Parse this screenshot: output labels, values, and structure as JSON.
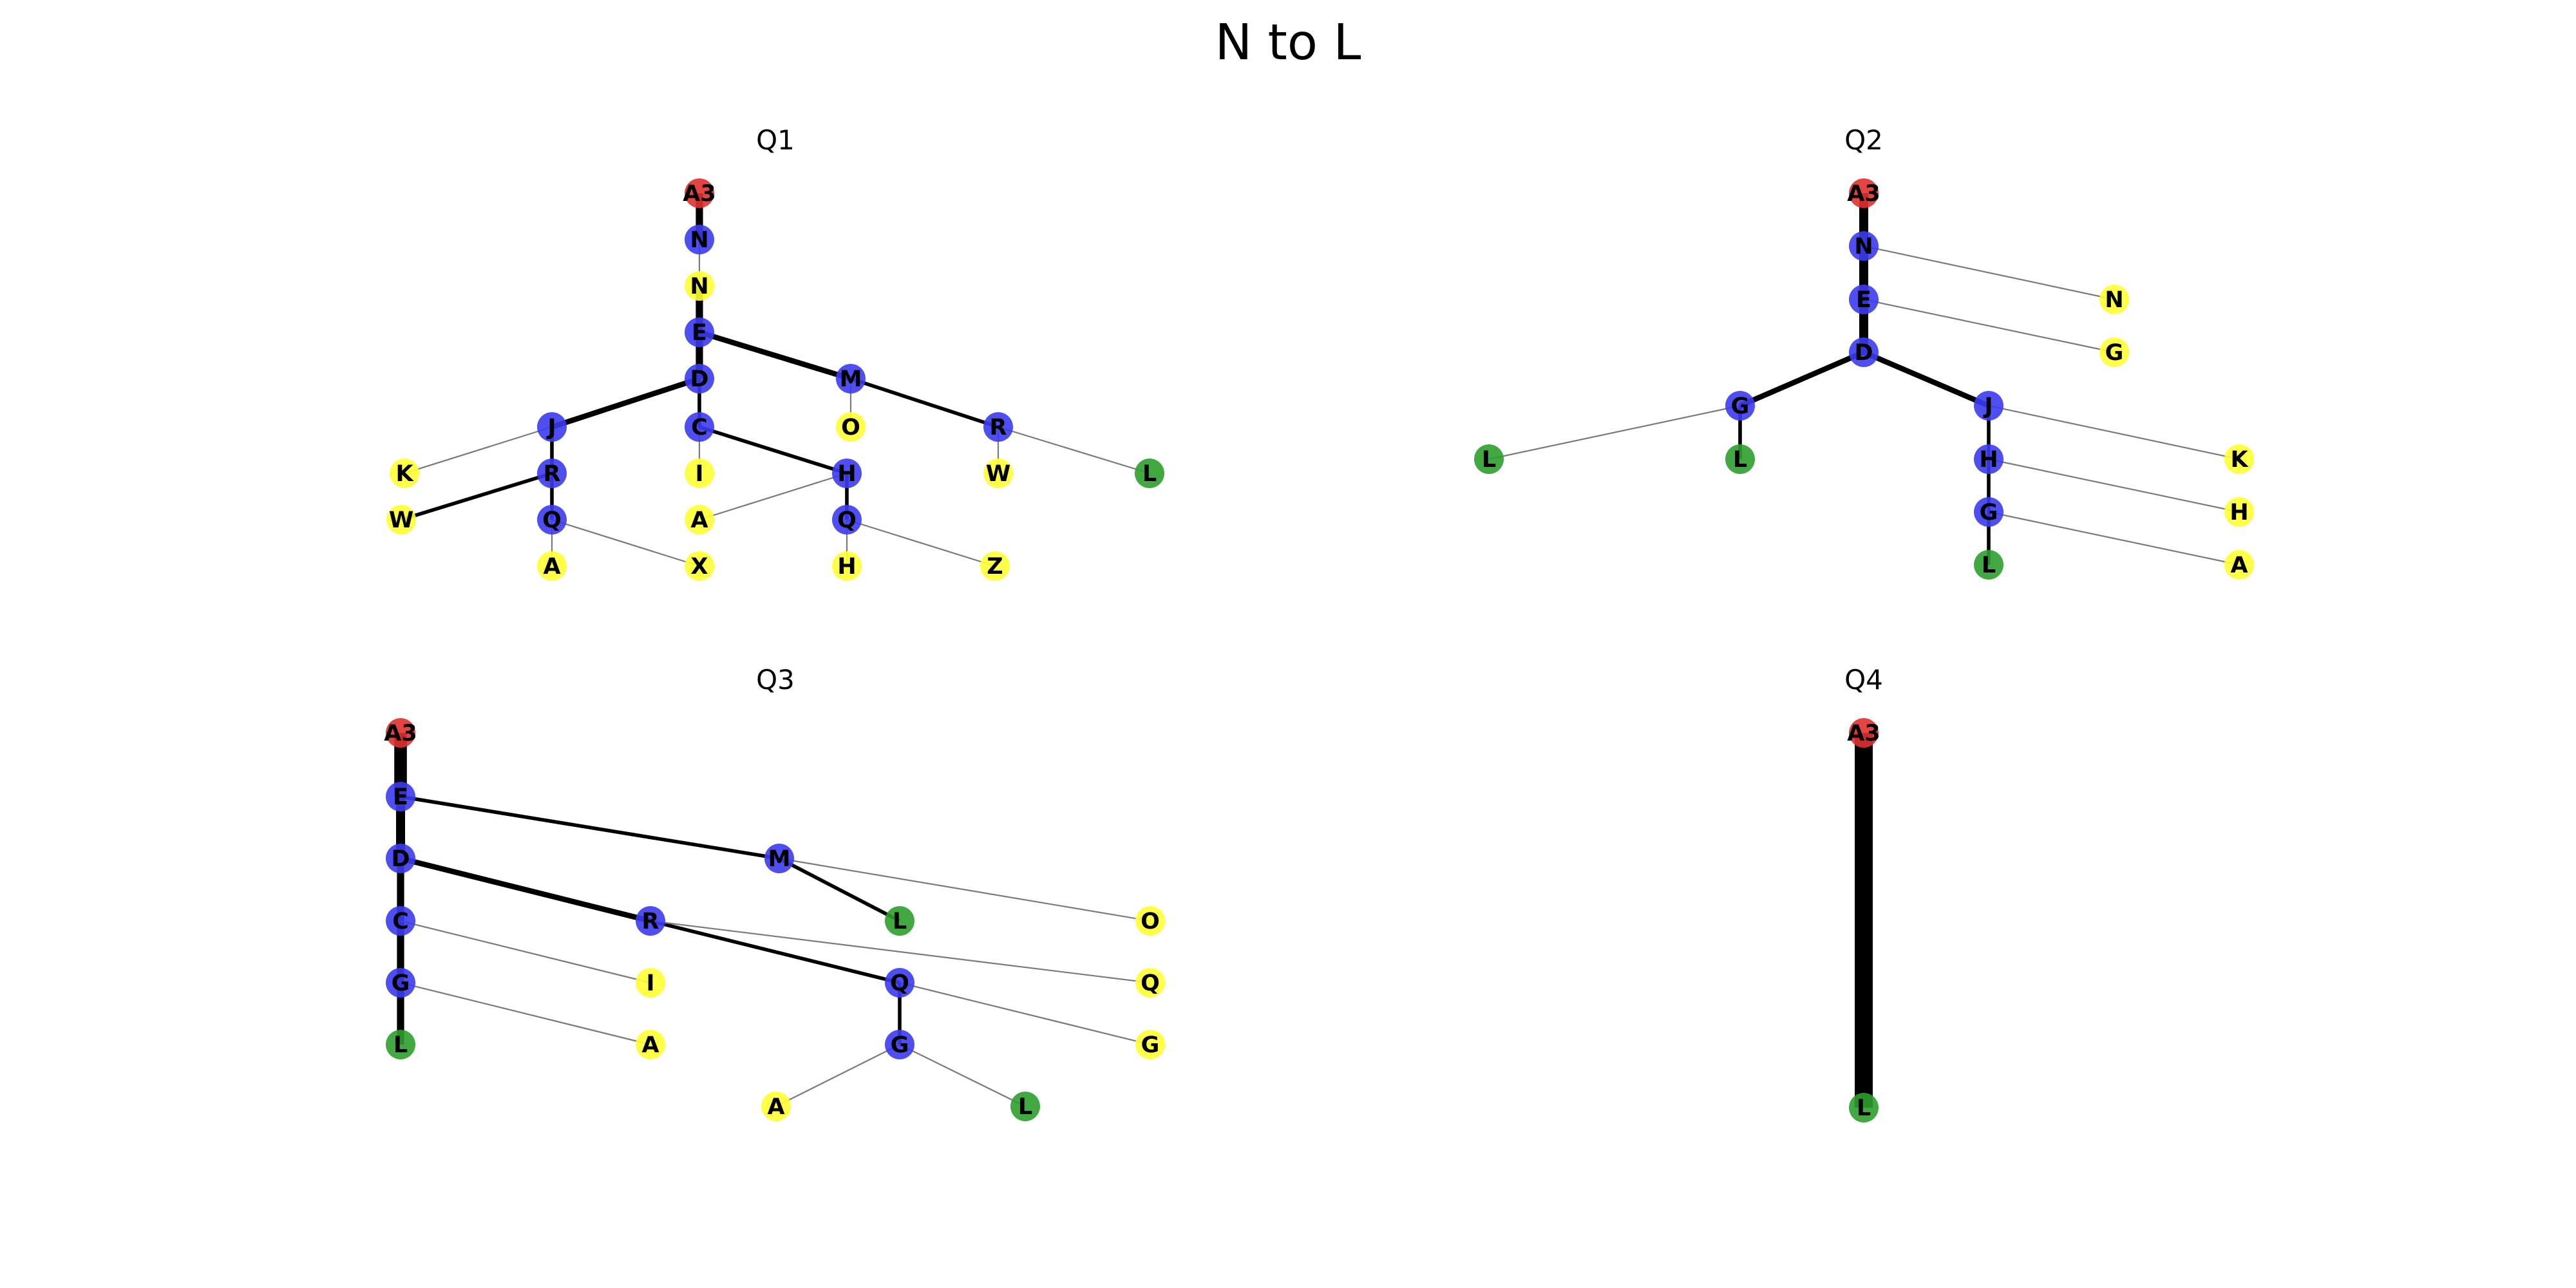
{
  "title": "N to L",
  "colors": {
    "root": "#e03030",
    "path": "#3c3cf0",
    "leaf": "#ffff33",
    "target": "#2e9e2e"
  },
  "panels": [
    {
      "title": "Q1",
      "nodes": [
        {
          "id": "A3",
          "label": "A3",
          "kind": "root"
        },
        {
          "id": "N1",
          "label": "N",
          "kind": "path"
        },
        {
          "id": "N2",
          "label": "N",
          "kind": "leaf"
        },
        {
          "id": "E",
          "label": "E",
          "kind": "path"
        },
        {
          "id": "D",
          "label": "D",
          "kind": "path"
        },
        {
          "id": "M",
          "label": "M",
          "kind": "path"
        },
        {
          "id": "J",
          "label": "J",
          "kind": "path"
        },
        {
          "id": "C",
          "label": "C",
          "kind": "path"
        },
        {
          "id": "O",
          "label": "O",
          "kind": "leaf"
        },
        {
          "id": "R2",
          "label": "R",
          "kind": "path"
        },
        {
          "id": "K",
          "label": "K",
          "kind": "leaf"
        },
        {
          "id": "R1",
          "label": "R",
          "kind": "path"
        },
        {
          "id": "I",
          "label": "I",
          "kind": "leaf"
        },
        {
          "id": "H1",
          "label": "H",
          "kind": "path"
        },
        {
          "id": "W2",
          "label": "W",
          "kind": "leaf"
        },
        {
          "id": "L",
          "label": "L",
          "kind": "target"
        },
        {
          "id": "W1",
          "label": "W",
          "kind": "leaf"
        },
        {
          "id": "Q1",
          "label": "Q",
          "kind": "path"
        },
        {
          "id": "A1",
          "label": "A",
          "kind": "leaf"
        },
        {
          "id": "Q2",
          "label": "Q",
          "kind": "path"
        },
        {
          "id": "A2",
          "label": "A",
          "kind": "leaf"
        },
        {
          "id": "X",
          "label": "X",
          "kind": "leaf"
        },
        {
          "id": "H2",
          "label": "H",
          "kind": "leaf"
        },
        {
          "id": "Z",
          "label": "Z",
          "kind": "leaf"
        }
      ],
      "edges": [
        {
          "from": "A3",
          "to": "N1",
          "w": 4
        },
        {
          "from": "N1",
          "to": "N2",
          "w": 1
        },
        {
          "from": "N2",
          "to": "E",
          "w": 4
        },
        {
          "from": "E",
          "to": "D",
          "w": 4
        },
        {
          "from": "E",
          "to": "M",
          "w": 3
        },
        {
          "from": "D",
          "to": "J",
          "w": 3
        },
        {
          "from": "D",
          "to": "C",
          "w": 2
        },
        {
          "from": "M",
          "to": "O",
          "w": 1
        },
        {
          "from": "M",
          "to": "R2",
          "w": 2
        },
        {
          "from": "R2",
          "to": "W2",
          "w": 1
        },
        {
          "from": "R2",
          "to": "L",
          "w": 1
        },
        {
          "from": "J",
          "to": "K",
          "w": 1
        },
        {
          "from": "J",
          "to": "R1",
          "w": 2
        },
        {
          "from": "R1",
          "to": "W1",
          "w": 2
        },
        {
          "from": "R1",
          "to": "Q1",
          "w": 2
        },
        {
          "from": "Q1",
          "to": "A1",
          "w": 1
        },
        {
          "from": "Q1",
          "to": "X",
          "w": 1
        },
        {
          "from": "C",
          "to": "I",
          "w": 1
        },
        {
          "from": "C",
          "to": "H1",
          "w": 2
        },
        {
          "from": "H1",
          "to": "A2",
          "w": 1
        },
        {
          "from": "H1",
          "to": "Q2",
          "w": 2
        },
        {
          "from": "Q2",
          "to": "H2",
          "w": 1
        },
        {
          "from": "Q2",
          "to": "Z",
          "w": 1
        }
      ]
    },
    {
      "title": "Q2",
      "nodes": [
        {
          "id": "A3",
          "label": "A3",
          "kind": "root"
        },
        {
          "id": "N1",
          "label": "N",
          "kind": "path"
        },
        {
          "id": "E",
          "label": "E",
          "kind": "path"
        },
        {
          "id": "N2",
          "label": "N",
          "kind": "leaf"
        },
        {
          "id": "G2",
          "label": "G",
          "kind": "leaf"
        },
        {
          "id": "D",
          "label": "D",
          "kind": "path"
        },
        {
          "id": "G1",
          "label": "G",
          "kind": "path"
        },
        {
          "id": "J",
          "label": "J",
          "kind": "path"
        },
        {
          "id": "L1",
          "label": "L",
          "kind": "target"
        },
        {
          "id": "L2",
          "label": "L",
          "kind": "target"
        },
        {
          "id": "H1",
          "label": "H",
          "kind": "path"
        },
        {
          "id": "K",
          "label": "K",
          "kind": "leaf"
        },
        {
          "id": "G3",
          "label": "G",
          "kind": "path"
        },
        {
          "id": "H2",
          "label": "H",
          "kind": "leaf"
        },
        {
          "id": "L3",
          "label": "L",
          "kind": "target"
        },
        {
          "id": "A",
          "label": "A",
          "kind": "leaf"
        }
      ],
      "edges": [
        {
          "from": "A3",
          "to": "N1",
          "w": 5
        },
        {
          "from": "N1",
          "to": "E",
          "w": 5
        },
        {
          "from": "N1",
          "to": "N2",
          "w": 1
        },
        {
          "from": "E",
          "to": "D",
          "w": 5
        },
        {
          "from": "E",
          "to": "G2",
          "w": 1
        },
        {
          "from": "D",
          "to": "G1",
          "w": 3
        },
        {
          "from": "D",
          "to": "J",
          "w": 3
        },
        {
          "from": "G1",
          "to": "L1",
          "w": 1
        },
        {
          "from": "G1",
          "to": "L2",
          "w": 2
        },
        {
          "from": "J",
          "to": "K",
          "w": 1
        },
        {
          "from": "J",
          "to": "H1",
          "w": 2
        },
        {
          "from": "H1",
          "to": "H2",
          "w": 1
        },
        {
          "from": "H1",
          "to": "G3",
          "w": 2
        },
        {
          "from": "G3",
          "to": "A",
          "w": 1
        },
        {
          "from": "G3",
          "to": "L3",
          "w": 2
        }
      ]
    },
    {
      "title": "Q3",
      "nodes": [
        {
          "id": "A3",
          "label": "A3",
          "kind": "root"
        },
        {
          "id": "E",
          "label": "E",
          "kind": "path"
        },
        {
          "id": "D",
          "label": "D",
          "kind": "path"
        },
        {
          "id": "M",
          "label": "M",
          "kind": "path"
        },
        {
          "id": "C",
          "label": "C",
          "kind": "path"
        },
        {
          "id": "R",
          "label": "R",
          "kind": "path"
        },
        {
          "id": "L2",
          "label": "L",
          "kind": "target"
        },
        {
          "id": "O",
          "label": "O",
          "kind": "leaf"
        },
        {
          "id": "G1",
          "label": "G",
          "kind": "path"
        },
        {
          "id": "I",
          "label": "I",
          "kind": "leaf"
        },
        {
          "id": "Q1",
          "label": "Q",
          "kind": "path"
        },
        {
          "id": "Q2",
          "label": "Q",
          "kind": "leaf"
        },
        {
          "id": "L1",
          "label": "L",
          "kind": "target"
        },
        {
          "id": "A1",
          "label": "A",
          "kind": "leaf"
        },
        {
          "id": "G2",
          "label": "G",
          "kind": "path"
        },
        {
          "id": "G3",
          "label": "G",
          "kind": "leaf"
        },
        {
          "id": "A2",
          "label": "A",
          "kind": "leaf"
        },
        {
          "id": "L3",
          "label": "L",
          "kind": "target"
        }
      ],
      "edges": [
        {
          "from": "A3",
          "to": "E",
          "w": 7
        },
        {
          "from": "E",
          "to": "D",
          "w": 5
        },
        {
          "from": "E",
          "to": "M",
          "w": 2
        },
        {
          "from": "D",
          "to": "C",
          "w": 4
        },
        {
          "from": "D",
          "to": "R",
          "w": 3
        },
        {
          "from": "M",
          "to": "L2",
          "w": 2
        },
        {
          "from": "M",
          "to": "O",
          "w": 1
        },
        {
          "from": "C",
          "to": "G1",
          "w": 4
        },
        {
          "from": "C",
          "to": "I",
          "w": 1
        },
        {
          "from": "G1",
          "to": "L1",
          "w": 4
        },
        {
          "from": "G1",
          "to": "A1",
          "w": 1
        },
        {
          "from": "R",
          "to": "Q1",
          "w": 2
        },
        {
          "from": "R",
          "to": "Q2",
          "w": 1
        },
        {
          "from": "Q1",
          "to": "G3",
          "w": 1
        },
        {
          "from": "Q1",
          "to": "G2",
          "w": 2
        },
        {
          "from": "G2",
          "to": "A2",
          "w": 1
        },
        {
          "from": "G2",
          "to": "L3",
          "w": 1
        }
      ]
    },
    {
      "title": "Q4",
      "nodes": [
        {
          "id": "A3",
          "label": "A3",
          "kind": "root"
        },
        {
          "id": "L",
          "label": "L",
          "kind": "target"
        }
      ],
      "edges": [
        {
          "from": "A3",
          "to": "L",
          "w": 10
        }
      ]
    }
  ]
}
